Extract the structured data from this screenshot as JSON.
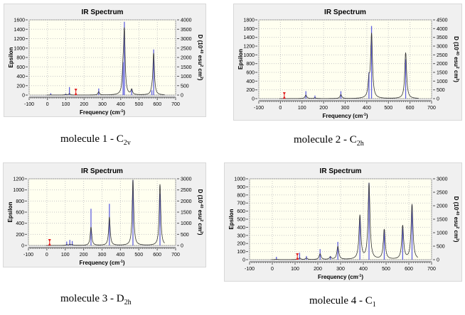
{
  "charts_common": {
    "title": "IR Spectrum",
    "xlabel": "Frequency (cm",
    "xlabel_sup": "-1",
    "xlabel_end": ")",
    "ylabel": "Epsilon",
    "y2label": "D (10",
    "y2label_sup": "-40",
    "y2label_mid": " esu",
    "y2label_sup2": "2",
    "y2label_mid2": " cm",
    "y2label_sup3": "2",
    "y2label_end": ")"
  },
  "colors": {
    "plot_bg": "#fffff0",
    "curve": "#333333",
    "sticks": "#6060e0",
    "marker": "#e02020",
    "grid": "#c8c8c8"
  },
  "chart_data": [
    {
      "type": "line",
      "title": "IR Spectrum",
      "caption": "molecule 1 - C",
      "caption_sub": "2v",
      "xlim": [
        -100,
        700
      ],
      "xticks": [
        -100,
        0,
        100,
        200,
        300,
        400,
        500,
        600,
        700
      ],
      "ylim": [
        0,
        1600
      ],
      "yticks": [
        0,
        200,
        400,
        600,
        800,
        1000,
        1200,
        1400,
        1600
      ],
      "y2lim": [
        0,
        4000
      ],
      "y2ticks": [
        0,
        500,
        1000,
        1500,
        2000,
        2500,
        3000,
        3500,
        4000
      ],
      "marker_x": 155,
      "peaks": [
        {
          "freq": 18,
          "stick": 40,
          "eps": 5
        },
        {
          "freq": 100,
          "stick": 30,
          "eps": 15
        },
        {
          "freq": 120,
          "stick": 170,
          "eps": 30
        },
        {
          "freq": 280,
          "stick": 140,
          "eps": 70
        },
        {
          "freq": 413,
          "stick": 700,
          "eps": 400
        },
        {
          "freq": 420,
          "stick": 1560,
          "eps": 1300
        },
        {
          "freq": 460,
          "stick": 130,
          "eps": 110
        },
        {
          "freq": 570,
          "stick": 100,
          "eps": 60
        },
        {
          "freq": 580,
          "stick": 970,
          "eps": 880
        }
      ]
    },
    {
      "type": "line",
      "title": "IR Spectrum",
      "caption": "molecule 2 - C",
      "caption_sub": "2h",
      "xlim": [
        -100,
        700
      ],
      "xticks": [
        -100,
        0,
        100,
        200,
        300,
        400,
        500,
        600,
        700
      ],
      "ylim": [
        0,
        1800
      ],
      "yticks": [
        0,
        200,
        400,
        600,
        800,
        1000,
        1200,
        1400,
        1600,
        1800
      ],
      "y2lim": [
        0,
        4500
      ],
      "y2ticks": [
        0,
        500,
        1000,
        1500,
        2000,
        2500,
        3000,
        3500,
        4000,
        4500
      ],
      "marker_x": 18,
      "peaks": [
        {
          "freq": 118,
          "stick": 170,
          "eps": 80
        },
        {
          "freq": 160,
          "stick": 70,
          "eps": 20
        },
        {
          "freq": 280,
          "stick": 170,
          "eps": 90
        },
        {
          "freq": 410,
          "stick": 600,
          "eps": 350
        },
        {
          "freq": 422,
          "stick": 1660,
          "eps": 1450
        },
        {
          "freq": 580,
          "stick": 900,
          "eps": 1050
        }
      ]
    },
    {
      "type": "line",
      "title": "IR Spectrum",
      "caption": "molecule 3 - D",
      "caption_sub": "2h",
      "xlim": [
        -100,
        700
      ],
      "xticks": [
        -100,
        0,
        100,
        200,
        300,
        400,
        500,
        600,
        700
      ],
      "ylim": [
        0,
        1200
      ],
      "yticks": [
        0,
        200,
        400,
        600,
        800,
        1000,
        1200
      ],
      "y2lim": [
        0,
        3000
      ],
      "y2ticks": [
        0,
        500,
        1000,
        1500,
        2000,
        2500,
        3000
      ],
      "marker_x": 15,
      "peaks": [
        {
          "freq": 108,
          "stick": 70,
          "eps": 15
        },
        {
          "freq": 125,
          "stick": 100,
          "eps": 20
        },
        {
          "freq": 138,
          "stick": 80,
          "eps": 15
        },
        {
          "freq": 240,
          "stick": 660,
          "eps": 330
        },
        {
          "freq": 340,
          "stick": 750,
          "eps": 510
        },
        {
          "freq": 468,
          "stick": 1180,
          "eps": 1180
        },
        {
          "freq": 615,
          "stick": 930,
          "eps": 1100
        }
      ]
    },
    {
      "type": "line",
      "title": "IR Spectrum",
      "caption": "molecule 4 - C",
      "caption_sub": "1",
      "xlim": [
        -100,
        700
      ],
      "xticks": [
        -100,
        0,
        100,
        200,
        300,
        400,
        500,
        600,
        700
      ],
      "ylim": [
        0,
        1000
      ],
      "yticks": [
        0,
        100,
        200,
        300,
        400,
        500,
        600,
        700,
        800,
        900,
        1000
      ],
      "y2lim": [
        0,
        3000
      ],
      "y2ticks": [
        0,
        500,
        1000,
        1500,
        2000,
        2500,
        3000
      ],
      "marker_x": 110,
      "peaks": [
        {
          "freq": 18,
          "stick": 35,
          "eps": 5
        },
        {
          "freq": 120,
          "stick": 85,
          "eps": 20
        },
        {
          "freq": 150,
          "stick": 45,
          "eps": 20
        },
        {
          "freq": 210,
          "stick": 130,
          "eps": 70
        },
        {
          "freq": 255,
          "stick": 45,
          "eps": 30
        },
        {
          "freq": 288,
          "stick": 220,
          "eps": 160
        },
        {
          "freq": 385,
          "stick": 530,
          "eps": 540
        },
        {
          "freq": 425,
          "stick": 950,
          "eps": 940
        },
        {
          "freq": 492,
          "stick": 370,
          "eps": 370
        },
        {
          "freq": 573,
          "stick": 410,
          "eps": 415
        },
        {
          "freq": 614,
          "stick": 670,
          "eps": 680
        }
      ]
    }
  ]
}
